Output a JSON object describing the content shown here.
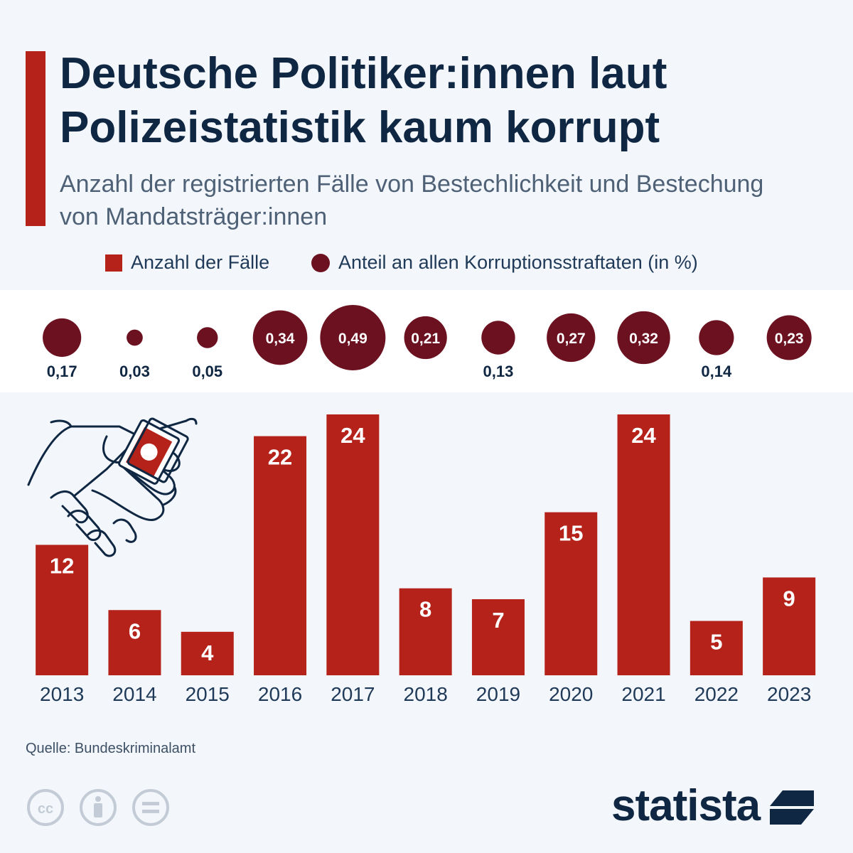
{
  "header": {
    "title": "Deutsche Politiker:innen laut Polizeistatistik kaum korrupt",
    "subtitle": "Anzahl der registrierten Fälle von Bestechlichkeit und Bestechung von Mandatsträger:innen"
  },
  "legend": {
    "cases": "Anzahl der Fälle",
    "share": "Anteil an allen Korruptionsstraftaten (in %)"
  },
  "colors": {
    "bar": "#b52219",
    "bubble": "#6c1120",
    "accent": "#b52219",
    "text": "#0f2742"
  },
  "chart_data": {
    "type": "bar",
    "categories": [
      "2013",
      "2014",
      "2015",
      "2016",
      "2017",
      "2018",
      "2019",
      "2020",
      "2021",
      "2022",
      "2023"
    ],
    "series": [
      {
        "name": "Anzahl der Fälle",
        "values": [
          12,
          6,
          4,
          22,
          24,
          8,
          7,
          15,
          24,
          5,
          9
        ]
      },
      {
        "name": "Anteil an allen Korruptionsstraftaten (in %)",
        "values": [
          0.17,
          0.03,
          0.05,
          0.34,
          0.49,
          0.21,
          0.13,
          0.27,
          0.32,
          0.14,
          0.23
        ]
      }
    ],
    "share_labels": [
      "0,17",
      "0,03",
      "0,05",
      "0,34",
      "0,49",
      "0,21",
      "0,13",
      "0,27",
      "0,32",
      "0,14",
      "0,23"
    ],
    "ylim": [
      0,
      24
    ],
    "grid": false,
    "legend_position": "top"
  },
  "footer": {
    "source": "Quelle: Bundeskriminalamt",
    "logo": "statista",
    "license_icons": [
      "cc-icon",
      "attribution-icon",
      "no-derivatives-icon"
    ]
  }
}
